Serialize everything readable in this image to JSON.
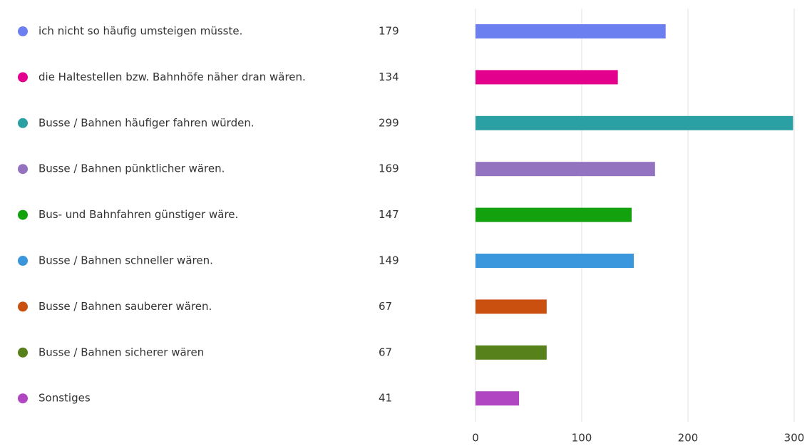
{
  "chart_data": {
    "type": "bar",
    "orientation": "horizontal",
    "categories": [
      "ich nicht so häufig umsteigen müsste.",
      "die Haltestellen bzw. Bahnhöfe näher dran wären.",
      "Busse / Bahnen häufiger fahren würden.",
      "Busse / Bahnen pünktlicher wären.",
      "Bus- und Bahnfahren günstiger wäre.",
      "Busse / Bahnen schneller wären.",
      "Busse / Bahnen sauberer wären.",
      "Busse / Bahnen sicherer wären",
      "Sonstiges"
    ],
    "values": [
      179,
      134,
      299,
      169,
      147,
      149,
      67,
      67,
      41
    ],
    "colors": [
      "#6b7ff0",
      "#e3008c",
      "#2aa0a4",
      "#9373c0",
      "#13a10e",
      "#3a96dd",
      "#ca5010",
      "#57811b",
      "#b146c2"
    ],
    "xlim": [
      0,
      300
    ],
    "xticks": [
      0,
      100,
      200,
      300
    ],
    "grid": true
  }
}
